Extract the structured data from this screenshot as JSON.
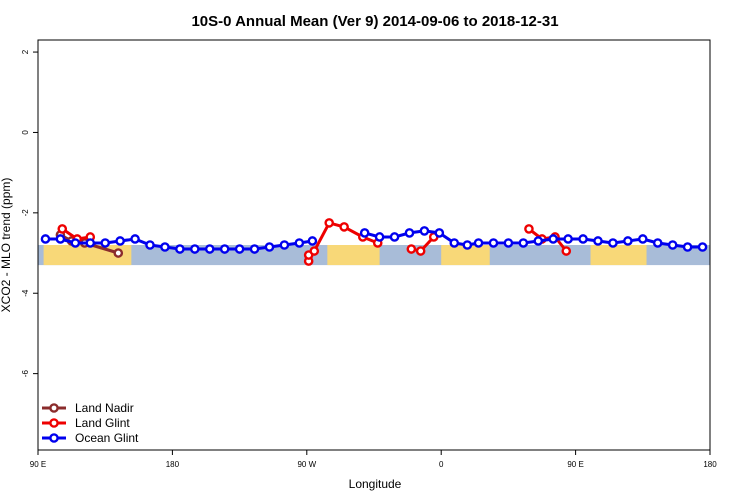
{
  "chart_data": {
    "type": "line",
    "title": "10S-0 Annual Mean (Ver 9)   2014-09-06 to 2018-12-31",
    "xlabel": "Longitude",
    "ylabel": "XCO2 - MLO trend (ppm)",
    "xlim": [
      90,
      450
    ],
    "ylim": [
      -7.9,
      2.3
    ],
    "x_ticks": [
      {
        "value": 90,
        "label": "90 E"
      },
      {
        "value": 162,
        "label": "180"
      },
      {
        "value": 234,
        "label": "90 W"
      },
      {
        "value": 306,
        "label": "0"
      },
      {
        "value": 378,
        "label": "90 E"
      },
      {
        "value": 450,
        "label": "180"
      }
    ],
    "y_ticks": [
      {
        "value": 2,
        "label": "2"
      },
      {
        "value": 0,
        "label": "0"
      },
      {
        "value": -2,
        "label": "-2"
      },
      {
        "value": -4,
        "label": "-4"
      },
      {
        "value": -6,
        "label": "-6"
      }
    ],
    "grid": false,
    "legend_position": "bottom-left",
    "background_map": {
      "lat_range": [
        -10,
        0
      ],
      "y_range": [
        -3.3,
        -2.8
      ],
      "ocean_color": "#a8bcd8",
      "land_color": "#f8d878",
      "land_segments": [
        [
          93,
          140
        ],
        [
          245,
          273
        ],
        [
          306,
          332
        ],
        [
          386,
          416
        ]
      ]
    },
    "series": [
      {
        "name": "Land Nadir",
        "color": "#8b2c2c",
        "x": [
          102,
          108,
          115,
          133
        ],
        "y": [
          -2.55,
          -2.7,
          -2.75,
          -3.0
        ],
        "segments": [
          [
            0,
            4
          ]
        ]
      },
      {
        "name": "Land Glint",
        "color": "#ee0000",
        "x": [
          103,
          111,
          118,
          235,
          235,
          238,
          246,
          254,
          264,
          272,
          290,
          295,
          302,
          353,
          360,
          367,
          373
        ],
        "y": [
          -2.4,
          -2.65,
          -2.6,
          -3.2,
          -3.05,
          -2.95,
          -2.25,
          -2.35,
          -2.6,
          -2.75,
          -2.9,
          -2.95,
          -2.6,
          -2.4,
          -2.65,
          -2.6,
          -2.95
        ],
        "segments": [
          [
            0,
            3
          ],
          [
            3,
            10
          ],
          [
            10,
            13
          ],
          [
            13,
            17
          ]
        ]
      },
      {
        "name": "Ocean Glint",
        "color": "#0000ee",
        "x": [
          94,
          102,
          110,
          118,
          126,
          134,
          142,
          150,
          158,
          166,
          174,
          182,
          190,
          198,
          206,
          214,
          222,
          230,
          237,
          265,
          273,
          281,
          289,
          297,
          305,
          313,
          320,
          326,
          334,
          342,
          350,
          358,
          366,
          374,
          382,
          390,
          398,
          406,
          414,
          422,
          430,
          438,
          446
        ],
        "y": [
          -2.65,
          -2.65,
          -2.75,
          -2.75,
          -2.75,
          -2.7,
          -2.65,
          -2.8,
          -2.85,
          -2.9,
          -2.9,
          -2.9,
          -2.9,
          -2.9,
          -2.9,
          -2.85,
          -2.8,
          -2.75,
          -2.7,
          -2.5,
          -2.6,
          -2.6,
          -2.5,
          -2.45,
          -2.5,
          -2.75,
          -2.8,
          -2.75,
          -2.75,
          -2.75,
          -2.75,
          -2.7,
          -2.65,
          -2.65,
          -2.65,
          -2.7,
          -2.75,
          -2.7,
          -2.65,
          -2.75,
          -2.8,
          -2.85,
          -2.85
        ],
        "segments": [
          [
            0,
            19
          ],
          [
            19,
            43
          ]
        ]
      }
    ]
  }
}
